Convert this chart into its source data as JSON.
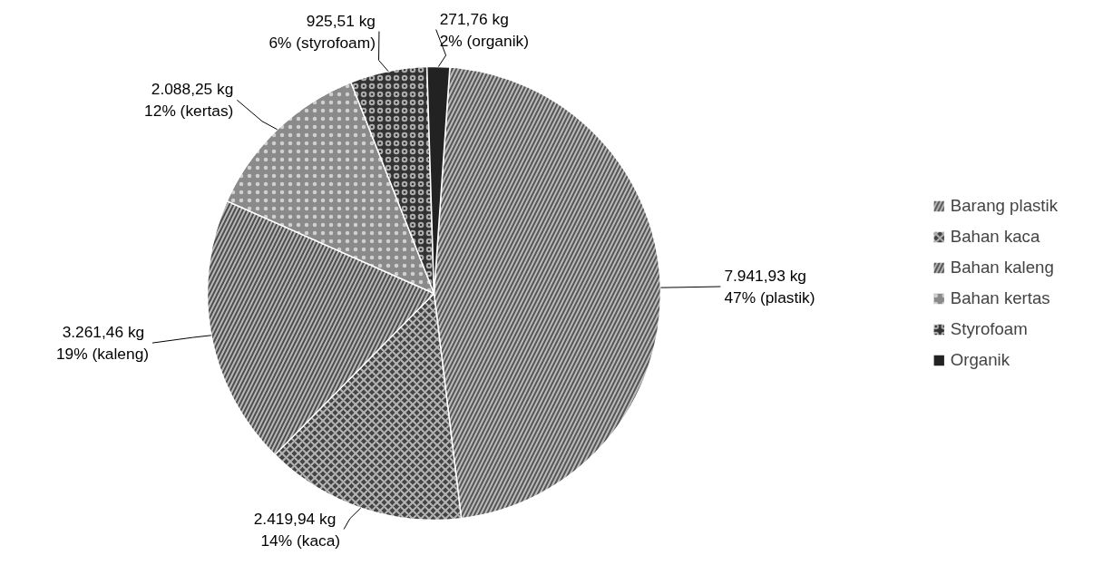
{
  "chart_data": {
    "type": "pie",
    "categories": [
      "Barang plastik",
      "Bahan kaca",
      "Bahan kaleng",
      "Bahan kertas",
      "Styrofoam",
      "Organik"
    ],
    "values": [
      7941.93,
      2419.94,
      3261.46,
      2088.25,
      925.51,
      271.76
    ],
    "colors": [
      "#555555",
      "#444444",
      "#4d4d4d",
      "#8a8a8a",
      "#333333",
      "#222222"
    ],
    "value_labels": [
      "7.941,93 kg\n47% (plastik)",
      "2.419,94  kg\n14% (kaca)",
      "3.261,46  kg\n19% (kaleng)",
      "2.088,25 kg\n12% (kertas)",
      "925,51 kg\n6% (styrofoam)",
      "271,76 kg\n2% (organik)"
    ],
    "legend": "right"
  }
}
